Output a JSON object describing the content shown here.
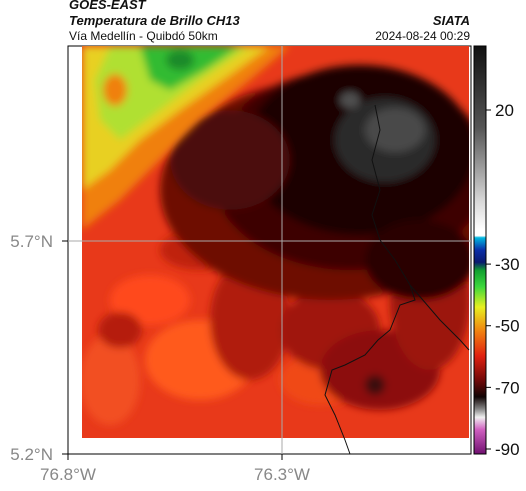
{
  "header": {
    "satellite": "GOES-EAST",
    "product": "Temperatura de Brillo CH13",
    "route": "Vía Medellín - Quibdó 50km",
    "org": "SIATA",
    "datetime": "2024-08-24 00:29"
  },
  "axes": {
    "lat_ticks": [
      "5.7°N",
      "5.2°N"
    ],
    "lon_ticks": [
      "76.8°W",
      "76.3°W"
    ]
  },
  "colorbar": {
    "ticks": [
      "20",
      "-30",
      "-50",
      "-70",
      "-90"
    ],
    "values": [
      20,
      -30,
      -50,
      -70,
      -90
    ]
  },
  "colors": {
    "warm": "#e8391a",
    "dark_red": "#4a0606",
    "black": "#140606",
    "grey": "#3a3a3a",
    "green": "#2db82d",
    "yellow": "#d8e82a"
  }
}
